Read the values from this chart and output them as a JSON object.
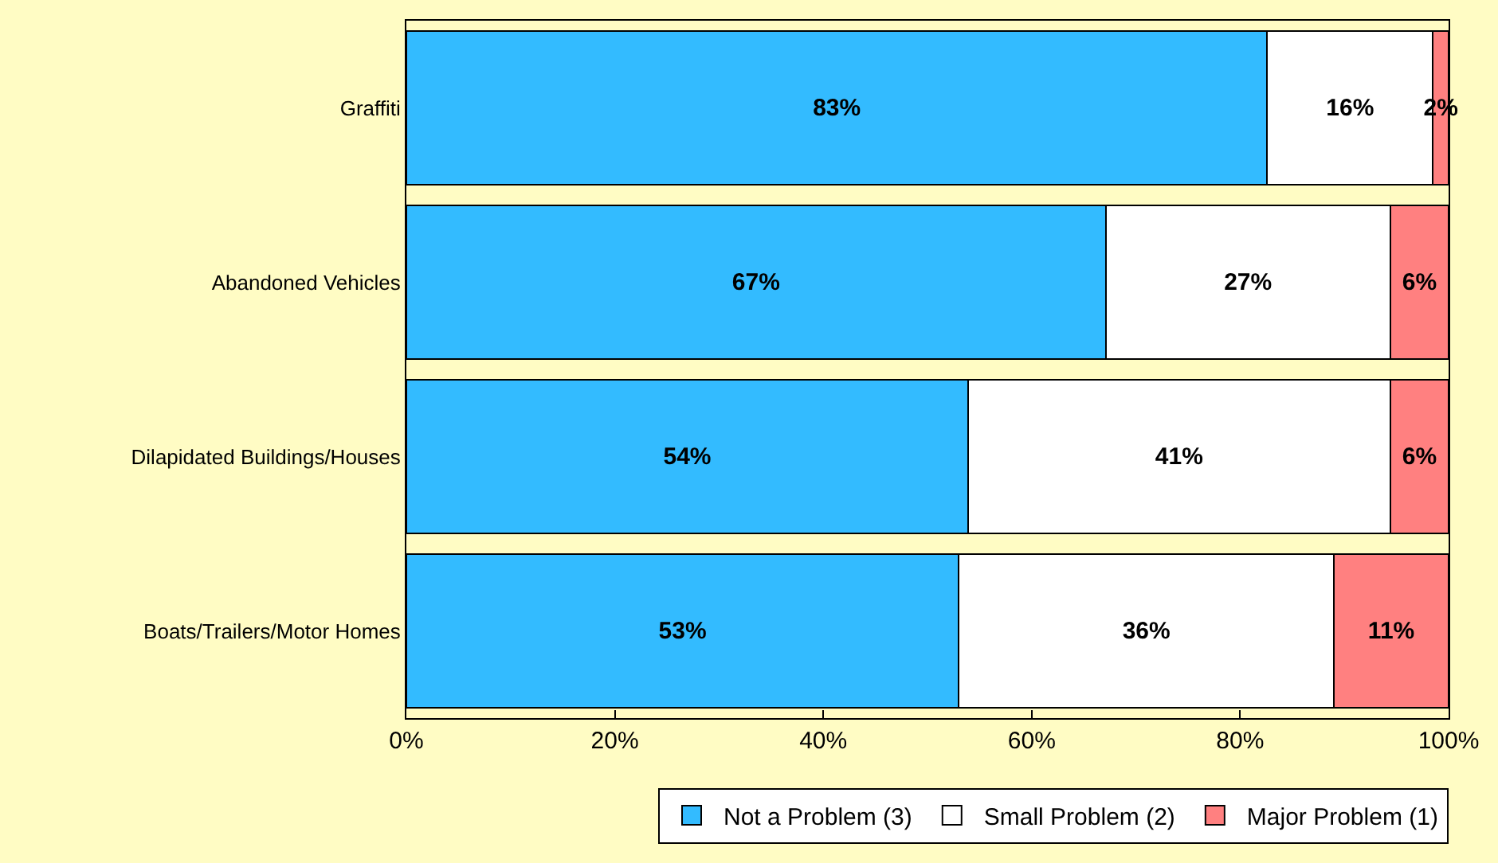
{
  "chart_data": {
    "type": "bar",
    "orientation": "horizontal",
    "stacked": true,
    "categories": [
      "Graffiti",
      "Abandoned Vehicles",
      "Dilapidated Buildings/Houses",
      "Boats/Trailers/Motor Homes"
    ],
    "series": [
      {
        "name": "Not a Problem (3)",
        "color": "#33bbff",
        "values": [
          82.6,
          67.1,
          53.9,
          53.0
        ],
        "value_labels": [
          "83%",
          "67%",
          "54%",
          "53%"
        ]
      },
      {
        "name": "Small Problem (2)",
        "color": "#ffffff",
        "values": [
          15.9,
          27.3,
          40.5,
          36.0
        ],
        "value_labels": [
          "16%",
          "27%",
          "41%",
          "36%"
        ]
      },
      {
        "name": "Major Problem (1)",
        "color": "#ff8080",
        "values": [
          1.5,
          5.6,
          5.6,
          11.0
        ],
        "value_labels": [
          "2%",
          "6%",
          "6%",
          "11%"
        ]
      }
    ],
    "xlim": [
      0,
      100
    ],
    "xticks": [
      {
        "value": 0,
        "label": "0%"
      },
      {
        "value": 20,
        "label": "20%"
      },
      {
        "value": 40,
        "label": "40%"
      },
      {
        "value": 60,
        "label": "60%"
      },
      {
        "value": 80,
        "label": "80%"
      },
      {
        "value": 100,
        "label": "100%"
      }
    ],
    "grid": false,
    "legend": "bottom right"
  }
}
